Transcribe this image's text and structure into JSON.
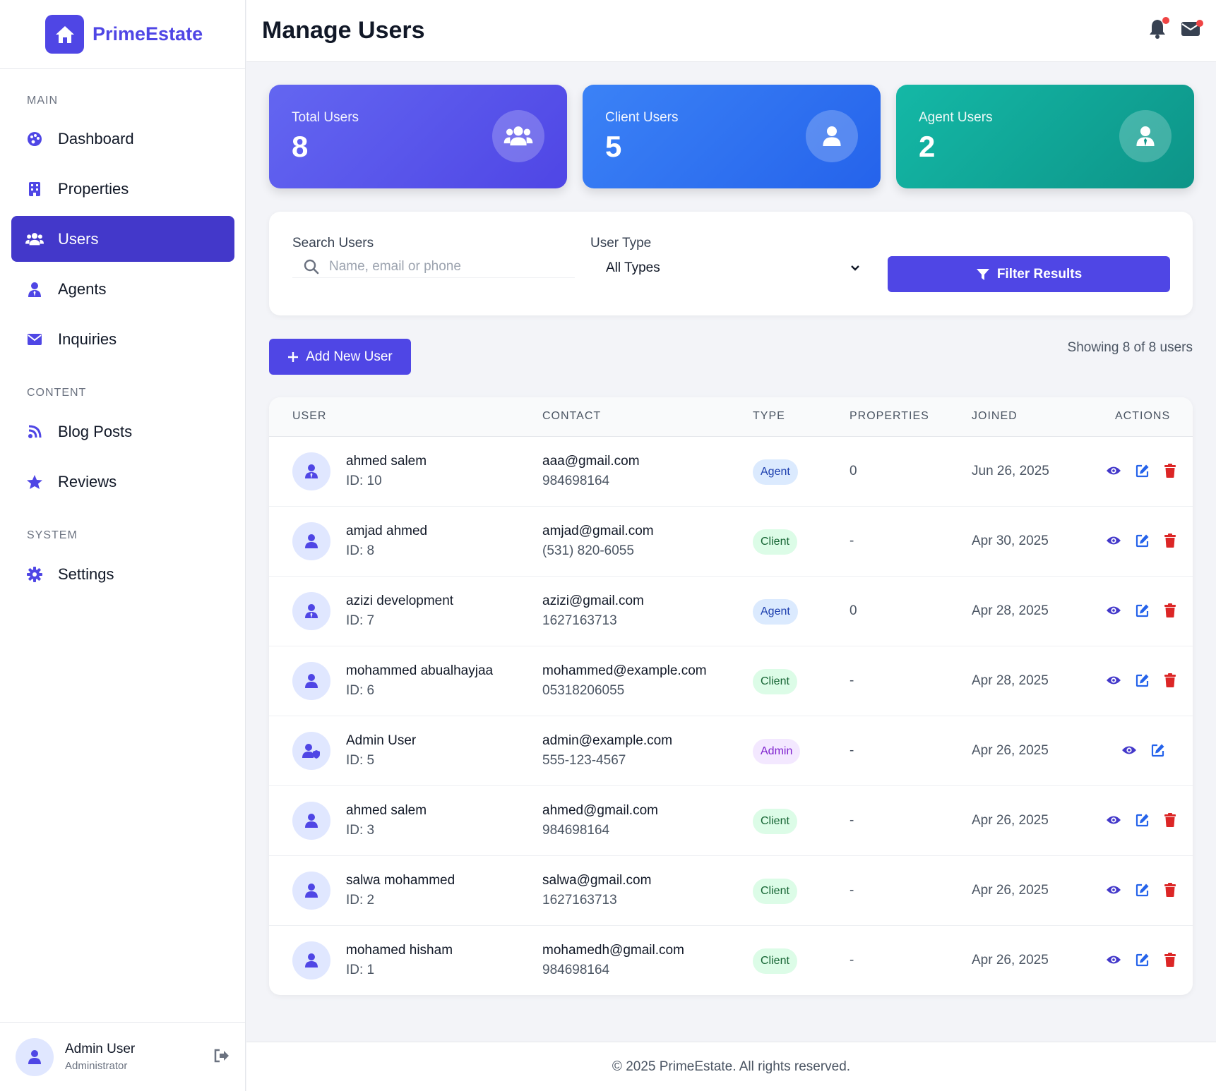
{
  "brand": {
    "name": "PrimeEstate"
  },
  "sidebar": {
    "sections": {
      "main": "MAIN",
      "content": "CONTENT",
      "system": "SYSTEM"
    },
    "items": [
      {
        "label": "Dashboard",
        "icon": "palette-icon"
      },
      {
        "label": "Properties",
        "icon": "building-icon"
      },
      {
        "label": "Users",
        "icon": "users-icon",
        "active": true
      },
      {
        "label": "Agents",
        "icon": "user-tie-icon"
      },
      {
        "label": "Inquiries",
        "icon": "envelope-icon"
      },
      {
        "label": "Blog Posts",
        "icon": "blog-icon"
      },
      {
        "label": "Reviews",
        "icon": "star-icon"
      },
      {
        "label": "Settings",
        "icon": "gear-icon"
      }
    ],
    "footer": {
      "name": "Admin User",
      "role": "Administrator"
    }
  },
  "header": {
    "title": "Manage Users"
  },
  "stats": [
    {
      "label": "Total Users",
      "value": "8"
    },
    {
      "label": "Client Users",
      "value": "5"
    },
    {
      "label": "Agent Users",
      "value": "2"
    }
  ],
  "filter": {
    "search_label": "Search Users",
    "search_placeholder": "Name, email or phone",
    "search_value": "",
    "type_label": "User Type",
    "type_selected": "All Types",
    "button_label": "Filter Results"
  },
  "toolbar": {
    "add_label": "Add New User",
    "showing": "Showing 8 of 8 users"
  },
  "table": {
    "headers": [
      "USER",
      "CONTACT",
      "TYPE",
      "PROPERTIES",
      "JOINED",
      "ACTIONS"
    ],
    "rows": [
      {
        "name": "ahmed salem",
        "id": "ID: 10",
        "email": "aaa@gmail.com",
        "phone": "984698164",
        "type": "Agent",
        "properties": "0",
        "joined": "Jun 26, 2025"
      },
      {
        "name": "amjad ahmed",
        "id": "ID: 8",
        "email": "amjad@gmail.com",
        "phone": "(531) 820-6055",
        "type": "Client",
        "properties": "-",
        "joined": "Apr 30, 2025"
      },
      {
        "name": "azizi development",
        "id": "ID: 7",
        "email": "azizi@gmail.com",
        "phone": "1627163713",
        "type": "Agent",
        "properties": "0",
        "joined": "Apr 28, 2025"
      },
      {
        "name": "mohammed abualhayjaa",
        "id": "ID: 6",
        "email": "mohammed@example.com",
        "phone": "05318206055",
        "type": "Client",
        "properties": "-",
        "joined": "Apr 28, 2025"
      },
      {
        "name": "Admin User",
        "id": "ID: 5",
        "email": "admin@example.com",
        "phone": "555-123-4567",
        "type": "Admin",
        "properties": "-",
        "joined": "Apr 26, 2025"
      },
      {
        "name": "ahmed salem",
        "id": "ID: 3",
        "email": "ahmed@gmail.com",
        "phone": "984698164",
        "type": "Client",
        "properties": "-",
        "joined": "Apr 26, 2025"
      },
      {
        "name": "salwa mohammed",
        "id": "ID: 2",
        "email": "salwa@gmail.com",
        "phone": "1627163713",
        "type": "Client",
        "properties": "-",
        "joined": "Apr 26, 2025"
      },
      {
        "name": "mohamed hisham",
        "id": "ID: 1",
        "email": "mohamedh@gmail.com",
        "phone": "984698164",
        "type": "Client",
        "properties": "-",
        "joined": "Apr 26, 2025"
      }
    ]
  },
  "footer": {
    "text": "© 2025 PrimeEstate. All rights reserved."
  },
  "colors": {
    "primary": "#4f46e5",
    "sidebar_active": "#4338ca",
    "card_total": "#6366f1",
    "card_client": "#3b82f6",
    "card_agent": "#14b8a6",
    "danger": "#dc2626"
  }
}
